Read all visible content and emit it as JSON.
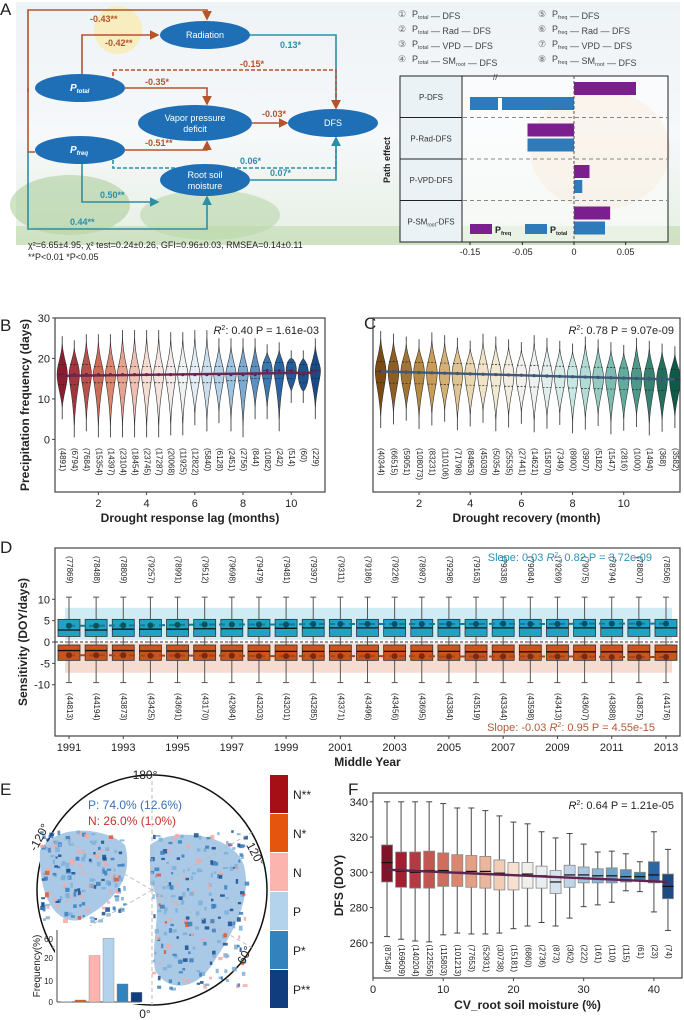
{
  "panel_labels": {
    "A": "A",
    "B": "B",
    "C": "C",
    "D": "D",
    "E": "E",
    "F": "F"
  },
  "chart_data": [
    {
      "panel": "A",
      "type": "diagram+bar",
      "path_diagram": {
        "nodes": [
          {
            "id": "P_total",
            "label": "P",
            "sub": "total"
          },
          {
            "id": "P_freq",
            "label": "P",
            "sub": "freq"
          },
          {
            "id": "Radiation",
            "label": "Radiation"
          },
          {
            "id": "VPD",
            "label": "Vapor pressure deficit"
          },
          {
            "id": "SM",
            "label": "Root soil moisture"
          },
          {
            "id": "DFS",
            "label": "DFS"
          }
        ],
        "edges": [
          {
            "from": "P_freq",
            "to": "Radiation",
            "coef": "-0.43**",
            "color": "#b5532b",
            "dashed": false
          },
          {
            "from": "P_total",
            "to": "Radiation",
            "coef": "-0.42**",
            "color": "#b5532b",
            "dashed": false
          },
          {
            "from": "Radiation",
            "to": "DFS",
            "coef": "0.13*",
            "color": "#2c8ea6",
            "dashed": false
          },
          {
            "from": "P_total",
            "to": "DFS",
            "coef": "-0.15*",
            "color": "#b5532b",
            "dashed": true
          },
          {
            "from": "P_total",
            "to": "VPD",
            "coef": "-0.35*",
            "color": "#b5532b",
            "dashed": false
          },
          {
            "from": "VPD",
            "to": "DFS",
            "coef": "-0.03*",
            "color": "#b5532b",
            "dashed": false
          },
          {
            "from": "P_freq",
            "to": "VPD",
            "coef": "-0.51**",
            "color": "#b5532b",
            "dashed": false
          },
          {
            "from": "P_freq",
            "to": "DFS",
            "coef": "0.06*",
            "color": "#2c8ea6",
            "dashed": true
          },
          {
            "from": "P_freq",
            "to": "SM",
            "coef": "0.50**",
            "color": "#2c8ea6",
            "dashed": false
          },
          {
            "from": "SM",
            "to": "DFS",
            "coef": "0.07*",
            "color": "#2c8ea6",
            "dashed": false
          },
          {
            "from": "P_total",
            "to": "SM",
            "coef": "0.44**",
            "color": "#2c8ea6",
            "dashed": false
          }
        ],
        "fit_stats": "χ²=6.65±4.95,  χ² test=0.24±0.26,  GFI=0.96±0.03,  RMSEA=0.14±0.11",
        "sig_note": "**P<0.01    *P<0.05"
      },
      "legend_paths": [
        {
          "n": "①",
          "text": "P_total — DFS"
        },
        {
          "n": "②",
          "text": "P_total — Rad — DFS"
        },
        {
          "n": "③",
          "text": "P_total — VPD — DFS"
        },
        {
          "n": "④",
          "text": "P_total — SM_root — DFS"
        },
        {
          "n": "⑤",
          "text": "P_freq — DFS"
        },
        {
          "n": "⑥",
          "text": "P_freq — Rad — DFS"
        },
        {
          "n": "⑦",
          "text": "P_freq — VPD — DFS"
        },
        {
          "n": "⑧",
          "text": "P_freq — SM_root — DFS"
        }
      ],
      "bar_chart": {
        "ylabel": "Path effect",
        "categories": [
          "P-DFS",
          "P-Rad-DFS",
          "P-VPD-DFS",
          "P-SM_root-DFS"
        ],
        "series": [
          {
            "name": "P_freq",
            "color": "#7b1f8f",
            "values": [
              0.06,
              -0.045,
              0.015,
              0.035
            ]
          },
          {
            "name": "P_total",
            "color": "#2f7ab8",
            "values": [
              -0.15,
              -0.045,
              0.008,
              0.03
            ]
          }
        ],
        "xticks": [
          "-0.15",
          "-0.05",
          "0",
          "0.05"
        ],
        "axis_break": true
      }
    },
    {
      "panel": "B",
      "type": "violin",
      "xlabel": "Drought response lag (months)",
      "ylabel": "Precipitation frequency (days)",
      "ylim": [
        -13,
        30
      ],
      "yticks": [
        0,
        10,
        20,
        30
      ],
      "xticks": [
        2,
        4,
        6,
        8,
        10
      ],
      "x": [
        0.5,
        1,
        1.5,
        2,
        2.5,
        3,
        3.5,
        4,
        4.5,
        5,
        5.5,
        6,
        6.5,
        7,
        7.5,
        8,
        8.5,
        9,
        9.5,
        10,
        10.5,
        11
      ],
      "counts": [
        "(4891)",
        "(6794)",
        "(7684)",
        "(15354)",
        "(14397)",
        "(23104)",
        "(18454)",
        "(23745)",
        "(17287)",
        "(20068)",
        "(11925)",
        "(12822)",
        "(5840)",
        "(6128)",
        "(2451)",
        "(2756)",
        "(844)",
        "(1082)",
        "(242)",
        "(514)",
        "(60)",
        "(229)"
      ],
      "medians": [
        16,
        16,
        16,
        16,
        16,
        16,
        16,
        16,
        16,
        16,
        16,
        16,
        16,
        16,
        16,
        16,
        16,
        17,
        17,
        17,
        16,
        17
      ],
      "q1": [
        13.5,
        13.5,
        14,
        14,
        14,
        14,
        14,
        14,
        14,
        14,
        14,
        14,
        14,
        14,
        14.5,
        14.5,
        15,
        15,
        15,
        15,
        14,
        15
      ],
      "q3": [
        18.5,
        18.5,
        18.5,
        18,
        18,
        18,
        18,
        18,
        18,
        18,
        18,
        18,
        18,
        18,
        18,
        18,
        18,
        19,
        19,
        19,
        18.5,
        18.5
      ],
      "min": [
        5,
        0.5,
        2,
        0.5,
        0.5,
        0.5,
        0.5,
        0.5,
        0.5,
        1,
        1,
        3.5,
        2,
        4,
        2,
        0.5,
        5,
        5,
        2,
        9,
        9,
        5
      ],
      "max": [
        25.5,
        24.5,
        26,
        26,
        26,
        27,
        27,
        27,
        27,
        26.5,
        26.5,
        27,
        27,
        25,
        25,
        25,
        25,
        23.5,
        24,
        22,
        22,
        25
      ],
      "annotation": "R²: 0.40   P = 1.61e-03",
      "trend": {
        "start": 15.7,
        "end": 16.5,
        "color": "#6b2750"
      }
    },
    {
      "panel": "C",
      "type": "violin",
      "xlabel": "Drought recovery (month)",
      "ylabel": "",
      "ylim": [
        -13,
        30
      ],
      "xticks": [
        2,
        4,
        6,
        8,
        10
      ],
      "x": [
        0.5,
        1,
        1.5,
        2,
        2.5,
        3,
        3.5,
        4,
        4.5,
        5,
        5.5,
        6,
        6.5,
        7,
        7.5,
        8,
        8.5,
        9,
        9.5,
        10,
        10.5,
        11,
        11.5,
        12
      ],
      "counts": [
        "(40344)",
        "(66515)",
        "(59051)",
        "(108073)",
        "(83231)",
        "(110106)",
        "(71798)",
        "(84963)",
        "(45030)",
        "(50354)",
        "(25535)",
        "(27441)",
        "(14621)",
        "(15870)",
        "(7349)",
        "(8900)",
        "(3907)",
        "(5182)",
        "(1547)",
        "(2816)",
        "(1000)",
        "(1494)",
        "(368)",
        "(3582)"
      ],
      "annotation": "R²: 0.78   P = 9.07e-09",
      "trend": {
        "start": 16.8,
        "end": 14.8,
        "color": "#3d5a78"
      }
    },
    {
      "panel": "D",
      "type": "box",
      "xlabel": "Middle Year",
      "ylabel": "Sensitivity (DOY/days)",
      "ylim": [
        -22,
        22
      ],
      "yticks": [
        -10,
        -5,
        0,
        5,
        10
      ],
      "x": [
        1991,
        1992,
        1993,
        1994,
        1995,
        1996,
        1997,
        1998,
        1999,
        2000,
        2001,
        2002,
        2003,
        2004,
        2005,
        2006,
        2007,
        2008,
        2009,
        2010,
        2011,
        2012,
        2013
      ],
      "xticks": [
        1991,
        1993,
        1995,
        1997,
        1999,
        2001,
        2003,
        2005,
        2007,
        2009,
        2011,
        2013
      ],
      "series": [
        {
          "name": "positive",
          "color": "#1fa2c6",
          "band_color": "#bfe6f2",
          "counts": [
            "(77869)",
            "(78488)",
            "(78809)",
            "(79257)",
            "(78991)",
            "(79512)",
            "(79698)",
            "(79479)",
            "(79481)",
            "(79397)",
            "(79311)",
            "(79186)",
            "(79226)",
            "(78987)",
            "(79298)",
            "(79163)",
            "(79338)",
            "(79084)",
            "(79269)",
            "(79075)",
            "(78794)",
            "(78807)",
            "(78506)"
          ],
          "mean": [
            3.8,
            3.8,
            3.9,
            3.9,
            4.0,
            4.1,
            4.1,
            4.1,
            4.1,
            4.2,
            4.2,
            4.2,
            4.2,
            4.2,
            4.2,
            4.2,
            4.3,
            4.2,
            4.2,
            4.3,
            4.3,
            4.3,
            4.3
          ],
          "median": [
            2.8,
            2.8,
            3.0,
            3.0,
            3.0,
            3.1,
            3.1,
            3.2,
            3.2,
            3.3,
            3.3,
            3.3,
            3.3,
            3.3,
            3.3,
            3.3,
            3.3,
            3.3,
            3.3,
            3.3,
            3.3,
            3.3,
            3.3
          ],
          "q1": 1.3,
          "q3": 5.3,
          "whisker_low": 0,
          "whisker_high": 10.5,
          "annotation": "Slope: 0.03   R²: 0.82   P = 3.72e-09"
        },
        {
          "name": "negative",
          "color": "#c9541c",
          "band_color": "#f3cfc2",
          "counts": [
            "(44813)",
            "(44194)",
            "(43873)",
            "(43425)",
            "(43691)",
            "(43170)",
            "(42984)",
            "(43203)",
            "(43201)",
            "(43285)",
            "(43371)",
            "(43496)",
            "(43456)",
            "(43695)",
            "(43384)",
            "(43519)",
            "(43344)",
            "(43598)",
            "(43413)",
            "(43607)",
            "(43888)",
            "(43875)",
            "(44176)"
          ],
          "mean": [
            -3.1,
            -3.1,
            -3.1,
            -3.2,
            -3.2,
            -3.2,
            -3.2,
            -3.3,
            -3.3,
            -3.3,
            -3.3,
            -3.3,
            -3.3,
            -3.3,
            -3.4,
            -3.4,
            -3.4,
            -3.4,
            -3.4,
            -3.4,
            -3.5,
            -3.5,
            -3.5
          ],
          "median": [
            -2.0,
            -2.0,
            -2.0,
            -2.1,
            -2.1,
            -2.1,
            -2.1,
            -2.2,
            -2.2,
            -2.2,
            -2.2,
            -2.2,
            -2.2,
            -2.2,
            -2.2,
            -2.3,
            -2.3,
            -2.3,
            -2.3,
            -2.3,
            -2.3,
            -2.3,
            -2.3
          ],
          "q1": -4.3,
          "q3": -0.7,
          "whisker_low": -9.5,
          "whisker_high": 0,
          "annotation": "Slope: -0.03   R²: 0.95   P = 4.55e-15"
        }
      ]
    },
    {
      "panel": "E",
      "type": "map+bar",
      "map_labels": [
        "180°",
        "120°",
        "60°",
        "0°",
        "-120°"
      ],
      "summary_P": "P:  74.0%  (12.6%)",
      "summary_N": "N:  26.0%  (1.0%)",
      "legend": [
        {
          "label": "N**",
          "color": "#a50f15"
        },
        {
          "label": "N*",
          "color": "#e6550d"
        },
        {
          "label": "N",
          "color": "#fbb4ae"
        },
        {
          "label": "P",
          "color": "#b3d3ec"
        },
        {
          "label": "P*",
          "color": "#3182bd"
        },
        {
          "label": "P**",
          "color": "#0f3d7e"
        }
      ],
      "inset_bar": {
        "ylabel": "Frequency(%)",
        "yticks": [
          "0",
          "10",
          "20",
          "60"
        ],
        "categories": [
          "N**",
          "N*",
          "N",
          "P",
          "P*",
          "P**"
        ],
        "values": [
          0.1,
          0.9,
          25.1,
          61.4,
          8.2,
          4.4
        ]
      }
    },
    {
      "panel": "F",
      "type": "box",
      "xlabel": "CV_root soil moisture (%)",
      "ylabel": "DFS (DOY)",
      "ylim": [
        240,
        345
      ],
      "yticks": [
        260,
        280,
        300,
        320,
        340
      ],
      "xlim": [
        0,
        44
      ],
      "xticks": [
        0,
        10,
        20,
        30,
        40
      ],
      "x": [
        2,
        4,
        6,
        8,
        10,
        12,
        14,
        16,
        18,
        20,
        22,
        24,
        26,
        28,
        30,
        32,
        34,
        36,
        38,
        40,
        42
      ],
      "counts": [
        "(87548)",
        "(169609)",
        "(140204)",
        "(122556)",
        "(115803)",
        "(101213)",
        "(77653)",
        "(52931)",
        "(30738)",
        "(15181)",
        "(6860)",
        "(2736)",
        "(873)",
        "(362)",
        "(222)",
        "(161)",
        "(110)",
        "(115)",
        "(61)",
        "(23)",
        "(74)"
      ],
      "q1": [
        294.5,
        291.5,
        291,
        291,
        292,
        292,
        291.5,
        291,
        290,
        290,
        291,
        291,
        288,
        291.5,
        294,
        294,
        294,
        294.5,
        295,
        294,
        285
      ],
      "q3": [
        315.5,
        311.5,
        311.5,
        312,
        311,
        310,
        309.5,
        309,
        307,
        305.5,
        305.5,
        303.5,
        301,
        304,
        303,
        302,
        302.5,
        301.5,
        300,
        306,
        299
      ],
      "median": [
        305.5,
        300.5,
        300,
        301,
        301,
        300,
        300.5,
        300.5,
        299.5,
        298.5,
        299,
        298,
        294.5,
        298.5,
        298.5,
        298,
        298,
        297.5,
        297.5,
        298.5,
        292
      ],
      "whisker_low": [
        263.5,
        262,
        261,
        260.5,
        264.5,
        265.5,
        265,
        265,
        265.5,
        268,
        269.5,
        271.5,
        269.5,
        274,
        280.5,
        281.5,
        283,
        289.5,
        289,
        277.5,
        267
      ],
      "whisker_high": [
        340,
        340,
        340,
        340,
        339,
        336.5,
        336.5,
        335,
        332,
        328.5,
        327.5,
        323,
        319.5,
        322,
        316,
        311.5,
        312,
        310.5,
        306,
        323,
        313
      ],
      "colors": [
        "#7f1327",
        "#9e2031",
        "#b23a42",
        "#c45652",
        "#d06e5e",
        "#d98870",
        "#e3a084",
        "#ebb79c",
        "#f2cdb6",
        "#f6e0d2",
        "#f2eeea",
        "#e9eef2",
        "#d6e3ee",
        "#bfd5e7",
        "#a7c7e0",
        "#8db7d6",
        "#73a5cb",
        "#5a93c0",
        "#4080b3",
        "#2c67a3",
        "#1d4a80"
      ],
      "annotation": "R²: 0.64   P = 1.21e-05",
      "trend": {
        "start": 301.5,
        "end": 294.5,
        "color": "#5e2550"
      }
    }
  ]
}
